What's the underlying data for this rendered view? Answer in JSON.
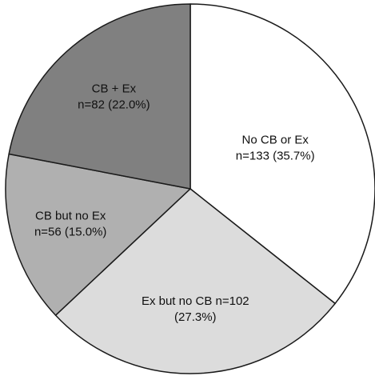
{
  "chart_data": {
    "type": "pie",
    "start_angle_deg": 0,
    "direction": "clockwise",
    "slices": [
      {
        "label_lines": [
          "No CB or Ex",
          "n=133 (35.7%)"
        ],
        "value": 133,
        "percent": 35.7,
        "color": "#ffffff"
      },
      {
        "label_lines": [
          "Ex but no CB n=102",
          "(27.3%)"
        ],
        "value": 102,
        "percent": 27.3,
        "color": "#dcdcdc"
      },
      {
        "label_lines": [
          "CB but no Ex",
          "n=56 (15.0%)"
        ],
        "value": 56,
        "percent": 15.0,
        "color": "#b0b0b0"
      },
      {
        "label_lines": [
          "CB + Ex",
          "n=82 (22.0%)"
        ],
        "value": 82,
        "percent": 22.0,
        "color": "#808080"
      }
    ]
  }
}
